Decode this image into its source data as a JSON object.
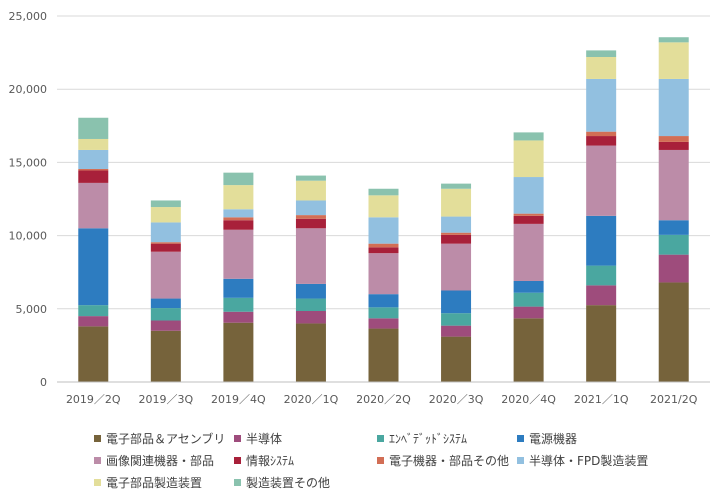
{
  "chart_data": {
    "type": "bar",
    "stacked": true,
    "title": "",
    "xlabel": "",
    "ylabel": "",
    "ylim": [
      0,
      25000
    ],
    "yticks": [
      0,
      5000,
      10000,
      15000,
      20000,
      25000
    ],
    "ytick_labels": [
      "0",
      "5,000",
      "10,000",
      "15,000",
      "20,000",
      "25,000"
    ],
    "grid": "horizontal",
    "legend_position": "bottom",
    "categories": [
      "2019／2Q",
      "2019／3Q",
      "2019／4Q",
      "2020／1Q",
      "2020／2Q",
      "2020／3Q",
      "2020／4Q",
      "2021／1Q",
      "2021/2Q"
    ],
    "series": [
      {
        "name": "電子部品＆アセンブリ",
        "color": "#76633B",
        "values": [
          3800,
          3500,
          4050,
          4000,
          3650,
          3100,
          4350,
          5250,
          6800
        ]
      },
      {
        "name": "半導体",
        "color": "#9E4C7C",
        "values": [
          700,
          700,
          750,
          850,
          700,
          750,
          800,
          1350,
          1900
        ]
      },
      {
        "name": "ｴﾝﾍﾞﾃﾞｯﾄﾞｼｽﾃﾑ",
        "color": "#4AA7A0",
        "values": [
          750,
          850,
          950,
          850,
          750,
          850,
          950,
          1350,
          1350
        ]
      },
      {
        "name": "電源機器",
        "color": "#2D7CC0",
        "values": [
          5250,
          650,
          1300,
          1000,
          900,
          1550,
          800,
          3400,
          1000
        ]
      },
      {
        "name": "画像関連機器・部品",
        "color": "#BC8CA8",
        "values": [
          3100,
          3200,
          3350,
          3800,
          2800,
          3200,
          3900,
          4800,
          4800
        ]
      },
      {
        "name": "情報ｼｽﾃﾑ",
        "color": "#A8203A",
        "values": [
          850,
          550,
          650,
          650,
          400,
          600,
          550,
          650,
          550
        ]
      },
      {
        "name": "電子機器・部品その他",
        "color": "#D26E55",
        "values": [
          100,
          100,
          200,
          250,
          250,
          150,
          150,
          300,
          400
        ]
      },
      {
        "name": "半導体・FPD製造装置",
        "color": "#92C0E0",
        "values": [
          1300,
          1350,
          550,
          1000,
          1800,
          1100,
          2500,
          3600,
          3900
        ]
      },
      {
        "name": "電子部品製造装置",
        "color": "#E3DE9A",
        "values": [
          750,
          1050,
          1650,
          1350,
          1500,
          1900,
          2500,
          1500,
          2500
        ]
      },
      {
        "name": "製造装置その他",
        "color": "#8AC2AE",
        "values": [
          1450,
          450,
          850,
          350,
          450,
          350,
          550,
          450,
          350
        ]
      }
    ]
  }
}
